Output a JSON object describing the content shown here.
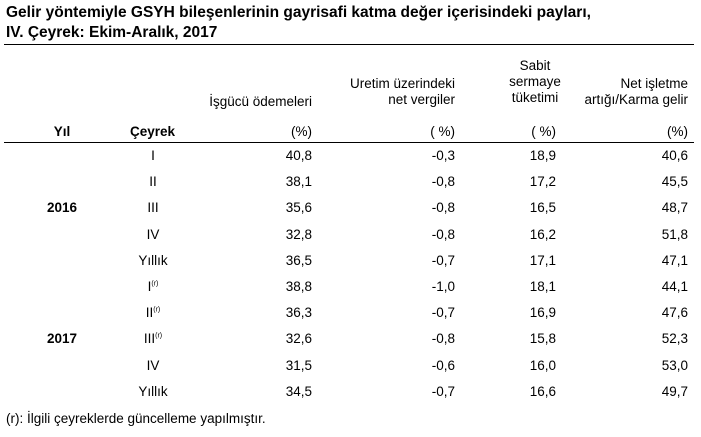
{
  "title": {
    "line1": "Gelir yöntemiyle GSYH bileşenlerinin gayrisafi katma değer içerisindeki payları,",
    "line2": "IV. Çeyrek: Ekim-Aralık, 2017"
  },
  "headers": {
    "yil": "Yıl",
    "ceyrek": "Çeyrek",
    "col1": [
      "İşgücü ödemeleri"
    ],
    "col2": [
      "Uretim üzerindeki",
      "net vergiler"
    ],
    "col3": [
      "Sabit",
      "sermaye",
      "tüketimi"
    ],
    "col4": [
      "Net işletme",
      "artığı/Karma gelir"
    ],
    "units": [
      "(%)",
      "( %)",
      "( %)",
      "(%)"
    ]
  },
  "years": [
    "2016",
    "2017"
  ],
  "rows": [
    {
      "ceyrek": "I",
      "rev": "",
      "vals": [
        "40,8",
        "-0,3",
        "18,9",
        "40,6"
      ]
    },
    {
      "ceyrek": "II",
      "rev": "",
      "vals": [
        "38,1",
        "-0,8",
        "17,2",
        "45,5"
      ]
    },
    {
      "ceyrek": "III",
      "rev": "",
      "vals": [
        "35,6",
        "-0,8",
        "16,5",
        "48,7"
      ]
    },
    {
      "ceyrek": "IV",
      "rev": "",
      "vals": [
        "32,8",
        "-0,8",
        "16,2",
        "51,8"
      ]
    },
    {
      "ceyrek": "Yıllık",
      "rev": "",
      "vals": [
        "36,5",
        "-0,7",
        "17,1",
        "47,1"
      ]
    },
    {
      "ceyrek": "I",
      "rev": "(r)",
      "vals": [
        "38,8",
        "-1,0",
        "18,1",
        "44,1"
      ]
    },
    {
      "ceyrek": "II",
      "rev": "(r)",
      "vals": [
        "36,3",
        "-0,7",
        "16,9",
        "47,6"
      ]
    },
    {
      "ceyrek": "III",
      "rev": "(r)",
      "vals": [
        "32,6",
        "-0,8",
        "15,8",
        "52,3"
      ]
    },
    {
      "ceyrek": "IV",
      "rev": "",
      "vals": [
        "31,5",
        "-0,6",
        "16,0",
        "53,0"
      ]
    },
    {
      "ceyrek": "Yıllık",
      "rev": "",
      "vals": [
        "34,5",
        "-0,7",
        "16,6",
        "49,7"
      ]
    }
  ],
  "footnote": "(r): İlgili çeyreklerde güncelleme yapılmıştır."
}
